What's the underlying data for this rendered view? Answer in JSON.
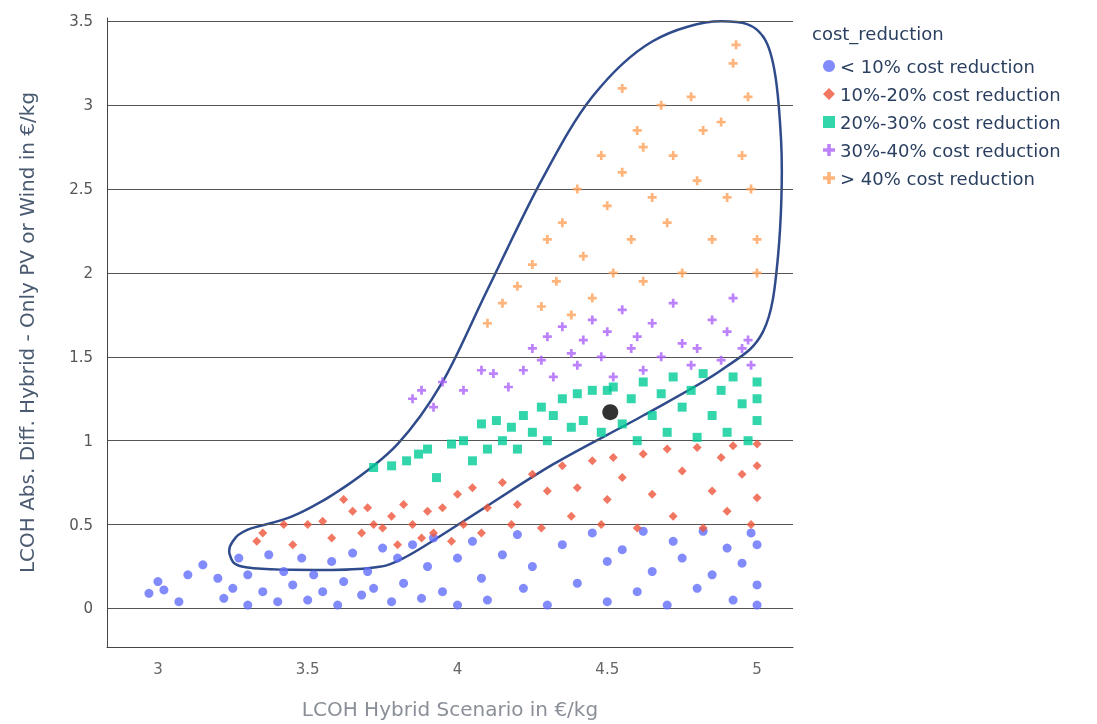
{
  "chart_data": {
    "type": "scatter",
    "xlabel": "LCOH Hybrid Scenario in €/kg",
    "ylabel": "LCOH Abs. Diff. Hybrid - Only PV or Wind in €/kg",
    "legend_title": "cost_reduction",
    "legend": "top right",
    "grid": "y",
    "xlim": [
      2.83,
      5.12
    ],
    "ylim": [
      -0.23,
      3.52
    ],
    "xticks": [
      3,
      3.5,
      4,
      4.5,
      5
    ],
    "yticks": [
      0,
      0.5,
      1,
      1.5,
      2,
      2.5,
      3,
      3.5
    ],
    "series": [
      {
        "name": "< 10% cost reduction",
        "color": "#636efa",
        "marker": "circle",
        "x": [
          2.97,
          3.0,
          3.02,
          3.07,
          3.1,
          3.15,
          3.2,
          3.22,
          3.25,
          3.27,
          3.3,
          3.3,
          3.35,
          3.37,
          3.4,
          3.42,
          3.45,
          3.48,
          3.5,
          3.52,
          3.55,
          3.58,
          3.6,
          3.62,
          3.65,
          3.68,
          3.7,
          3.72,
          3.75,
          3.78,
          3.8,
          3.82,
          3.85,
          3.88,
          3.9,
          3.92,
          3.95,
          4.0,
          4.0,
          4.05,
          4.08,
          4.1,
          4.15,
          4.2,
          4.22,
          4.25,
          4.3,
          4.35,
          4.4,
          4.45,
          4.5,
          4.5,
          4.55,
          4.6,
          4.62,
          4.65,
          4.7,
          4.72,
          4.75,
          4.8,
          4.82,
          4.85,
          4.9,
          4.92,
          4.95,
          4.98,
          5.0,
          5.0,
          5.0
        ],
        "values": [
          0.09,
          0.16,
          0.11,
          0.04,
          0.2,
          0.26,
          0.18,
          0.06,
          0.12,
          0.3,
          0.02,
          0.2,
          0.1,
          0.32,
          0.04,
          0.22,
          0.14,
          0.3,
          0.05,
          0.2,
          0.1,
          0.28,
          0.02,
          0.16,
          0.33,
          0.08,
          0.22,
          0.12,
          0.36,
          0.04,
          0.3,
          0.15,
          0.38,
          0.06,
          0.25,
          0.42,
          0.1,
          0.3,
          0.02,
          0.4,
          0.18,
          0.05,
          0.32,
          0.44,
          0.12,
          0.25,
          0.02,
          0.38,
          0.15,
          0.45,
          0.28,
          0.04,
          0.35,
          0.1,
          0.46,
          0.22,
          0.02,
          0.4,
          0.3,
          0.12,
          0.46,
          0.2,
          0.36,
          0.05,
          0.27,
          0.45,
          0.14,
          0.02,
          0.38
        ]
      },
      {
        "name": "10%-20% cost reduction",
        "color": "#ef553b",
        "marker": "diamond",
        "x": [
          3.33,
          3.35,
          3.42,
          3.45,
          3.5,
          3.55,
          3.58,
          3.62,
          3.65,
          3.68,
          3.7,
          3.72,
          3.75,
          3.78,
          3.8,
          3.82,
          3.85,
          3.88,
          3.9,
          3.92,
          3.95,
          3.98,
          4.0,
          4.02,
          4.05,
          4.08,
          4.1,
          4.15,
          4.18,
          4.2,
          4.25,
          4.28,
          4.3,
          4.35,
          4.38,
          4.4,
          4.45,
          4.48,
          4.5,
          4.52,
          4.55,
          4.6,
          4.62,
          4.65,
          4.7,
          4.72,
          4.75,
          4.8,
          4.82,
          4.85,
          4.88,
          4.9,
          4.92,
          4.95,
          4.98,
          5.0,
          5.0,
          5.0
        ],
        "values": [
          0.4,
          0.45,
          0.5,
          0.38,
          0.5,
          0.52,
          0.42,
          0.65,
          0.58,
          0.45,
          0.6,
          0.5,
          0.48,
          0.55,
          0.38,
          0.62,
          0.5,
          0.42,
          0.58,
          0.45,
          0.6,
          0.4,
          0.68,
          0.5,
          0.72,
          0.45,
          0.6,
          0.75,
          0.5,
          0.62,
          0.8,
          0.48,
          0.7,
          0.85,
          0.55,
          0.72,
          0.88,
          0.5,
          0.65,
          0.9,
          0.78,
          0.48,
          0.92,
          0.68,
          0.95,
          0.55,
          0.82,
          0.96,
          0.48,
          0.7,
          0.9,
          0.58,
          0.97,
          0.8,
          0.5,
          0.98,
          0.66,
          0.85
        ]
      },
      {
        "name": "20%-30% cost reduction",
        "color": "#00cc96",
        "marker": "square",
        "x": [
          3.72,
          3.78,
          3.83,
          3.87,
          3.9,
          3.93,
          3.98,
          4.02,
          4.05,
          4.08,
          4.1,
          4.13,
          4.15,
          4.18,
          4.2,
          4.22,
          4.25,
          4.28,
          4.3,
          4.32,
          4.35,
          4.38,
          4.4,
          4.42,
          4.45,
          4.48,
          4.5,
          4.52,
          4.55,
          4.58,
          4.6,
          4.62,
          4.65,
          4.68,
          4.7,
          4.72,
          4.75,
          4.78,
          4.8,
          4.82,
          4.85,
          4.88,
          4.9,
          4.92,
          4.95,
          4.97,
          5.0,
          5.0,
          5.0
        ],
        "values": [
          0.84,
          0.85,
          0.88,
          0.92,
          0.95,
          0.78,
          0.98,
          1.0,
          0.88,
          1.1,
          0.95,
          1.12,
          1.0,
          1.08,
          0.95,
          1.15,
          1.05,
          1.2,
          1.0,
          1.15,
          1.25,
          1.08,
          1.28,
          1.12,
          1.3,
          1.05,
          1.3,
          1.32,
          1.1,
          1.25,
          1.0,
          1.35,
          1.15,
          1.28,
          1.05,
          1.38,
          1.2,
          1.3,
          1.02,
          1.4,
          1.15,
          1.3,
          1.05,
          1.38,
          1.22,
          1.0,
          1.35,
          1.12,
          1.25
        ]
      },
      {
        "name": "30%-40% cost reduction",
        "color": "#ab63fa",
        "marker": "cross",
        "x": [
          3.85,
          3.88,
          3.92,
          3.95,
          4.02,
          4.08,
          4.12,
          4.17,
          4.22,
          4.25,
          4.28,
          4.3,
          4.32,
          4.35,
          4.38,
          4.4,
          4.42,
          4.45,
          4.48,
          4.5,
          4.52,
          4.55,
          4.58,
          4.6,
          4.62,
          4.65,
          4.68,
          4.72,
          4.75,
          4.78,
          4.8,
          4.85,
          4.88,
          4.9,
          4.92,
          4.95,
          4.97,
          4.98
        ],
        "values": [
          1.25,
          1.3,
          1.2,
          1.35,
          1.3,
          1.42,
          1.4,
          1.32,
          1.42,
          1.55,
          1.48,
          1.62,
          1.38,
          1.68,
          1.52,
          1.45,
          1.6,
          1.72,
          1.5,
          1.65,
          1.38,
          1.78,
          1.55,
          1.62,
          1.42,
          1.7,
          1.5,
          1.82,
          1.58,
          1.45,
          1.55,
          1.72,
          1.48,
          1.65,
          1.85,
          1.55,
          1.6,
          1.45
        ]
      },
      {
        "name": "> 40% cost reduction",
        "color": "#ffa15a",
        "marker": "cross",
        "x": [
          4.1,
          4.15,
          4.2,
          4.25,
          4.28,
          4.3,
          4.33,
          4.35,
          4.38,
          4.4,
          4.42,
          4.45,
          4.48,
          4.5,
          4.52,
          4.55,
          4.55,
          4.58,
          4.6,
          4.62,
          4.62,
          4.65,
          4.68,
          4.7,
          4.72,
          4.75,
          4.78,
          4.8,
          4.82,
          4.85,
          4.88,
          4.9,
          4.92,
          4.93,
          4.95,
          4.97,
          4.98,
          5.0,
          5.0
        ],
        "values": [
          1.7,
          1.82,
          1.92,
          2.05,
          1.8,
          2.2,
          1.95,
          2.3,
          1.75,
          2.5,
          2.1,
          1.85,
          2.7,
          2.4,
          2.0,
          2.6,
          3.1,
          2.2,
          2.85,
          1.95,
          2.75,
          2.45,
          3.0,
          2.3,
          2.7,
          2.0,
          3.05,
          2.55,
          2.85,
          2.2,
          2.9,
          2.45,
          3.25,
          3.36,
          2.7,
          3.05,
          2.5,
          2.2,
          2.0
        ]
      },
      {
        "color": "#000000",
        "marker": "circle",
        "x": [
          4.51
        ],
        "values": [
          1.17
        ]
      }
    ]
  }
}
